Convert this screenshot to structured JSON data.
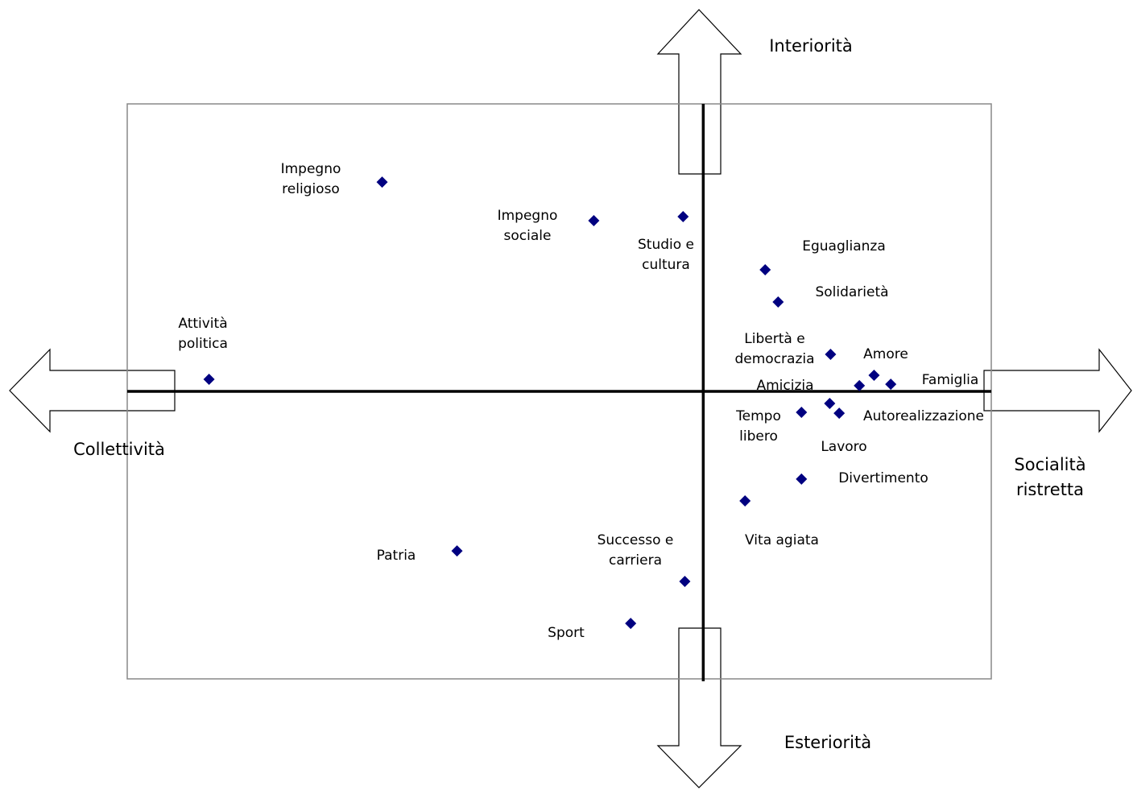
{
  "chart_data": {
    "type": "scatter",
    "axis_labels": {
      "top": "Interiorità",
      "bottom": "Esteriorità",
      "left": "Collettività",
      "right": [
        "Socialità",
        "ristretta"
      ]
    },
    "color": "#000080",
    "xlim": [
      -2,
      1
    ],
    "ylim": [
      -1,
      1
    ],
    "points": [
      {
        "label": [
          "Impegno",
          "religioso"
        ],
        "x": -1.115,
        "y": 0.728
      },
      {
        "label": [
          "Impegno",
          "sociale"
        ],
        "x": -0.38,
        "y": 0.594
      },
      {
        "label": [
          "Studio e",
          "cultura"
        ],
        "x": -0.07,
        "y": 0.608
      },
      {
        "label": [
          "Eguaglianza"
        ],
        "x": 0.215,
        "y": 0.423
      },
      {
        "label": [
          "Solidarietà"
        ],
        "x": 0.26,
        "y": 0.311
      },
      {
        "label": [
          "Libertà e",
          "democrazia"
        ],
        "x": 0.442,
        "y": 0.129
      },
      {
        "label": [
          "Amore"
        ],
        "x": 0.593,
        "y": 0.056
      },
      {
        "label": [
          "Famiglia"
        ],
        "x": 0.651,
        "y": 0.025
      },
      {
        "label": [
          "Amicizia"
        ],
        "x": 0.542,
        "y": 0.02
      },
      {
        "label": [
          "Autorealizzazione"
        ],
        "x": 0.472,
        "y": -0.076
      },
      {
        "label": [
          "Lavoro"
        ],
        "x": 0.439,
        "y": -0.042
      },
      {
        "label": [
          "Tempo",
          "libero"
        ],
        "x": 0.341,
        "y": -0.073
      },
      {
        "label": [
          "Divertimento"
        ],
        "x": 0.341,
        "y": -0.305
      },
      {
        "label": [
          "Vita agiata"
        ],
        "x": 0.145,
        "y": -0.381
      },
      {
        "label": [
          "Attività",
          "politica"
        ],
        "x": -1.716,
        "y": 0.042
      },
      {
        "label": [
          "Patria"
        ],
        "x": -0.855,
        "y": -0.555
      },
      {
        "label": [
          "Successo e",
          "carriera"
        ],
        "x": -0.064,
        "y": -0.661
      },
      {
        "label": [
          "Sport"
        ],
        "x": -0.252,
        "y": -0.807
      }
    ]
  }
}
